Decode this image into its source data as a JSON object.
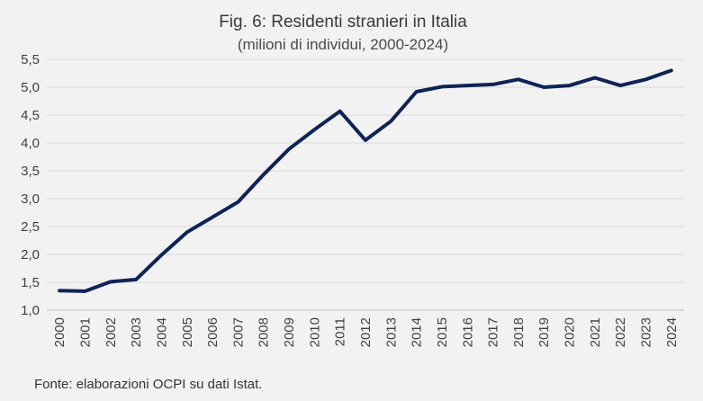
{
  "chart_data": {
    "type": "line",
    "title": "Fig. 6: Residenti stranieri in Italia",
    "subtitle": "(milioni di individui, 2000-2024)",
    "xlabel": "",
    "ylabel": "",
    "x": [
      "2000",
      "2001",
      "2002",
      "2003",
      "2004",
      "2005",
      "2006",
      "2007",
      "2008",
      "2009",
      "2010",
      "2011",
      "2012",
      "2013",
      "2014",
      "2015",
      "2016",
      "2017",
      "2018",
      "2019",
      "2020",
      "2021",
      "2022",
      "2023",
      "2024"
    ],
    "series": [
      {
        "values": [
          1.35,
          1.34,
          1.51,
          1.55,
          1.99,
          2.4,
          2.67,
          2.94,
          3.43,
          3.89,
          4.24,
          4.57,
          4.05,
          4.39,
          4.92,
          5.01,
          5.03,
          5.05,
          5.14,
          5.0,
          5.03,
          5.17,
          5.03,
          5.14,
          5.3
        ],
        "color": "#0e2356"
      }
    ],
    "ylim": [
      1.0,
      5.5
    ],
    "yticks": [
      "1,0",
      "1,5",
      "2,0",
      "2,5",
      "3,0",
      "3,5",
      "4,0",
      "4,5",
      "5,0",
      "5,5"
    ],
    "grid": true,
    "legend": "none"
  },
  "source": "Fonte: elaborazioni OCPI su dati Istat."
}
